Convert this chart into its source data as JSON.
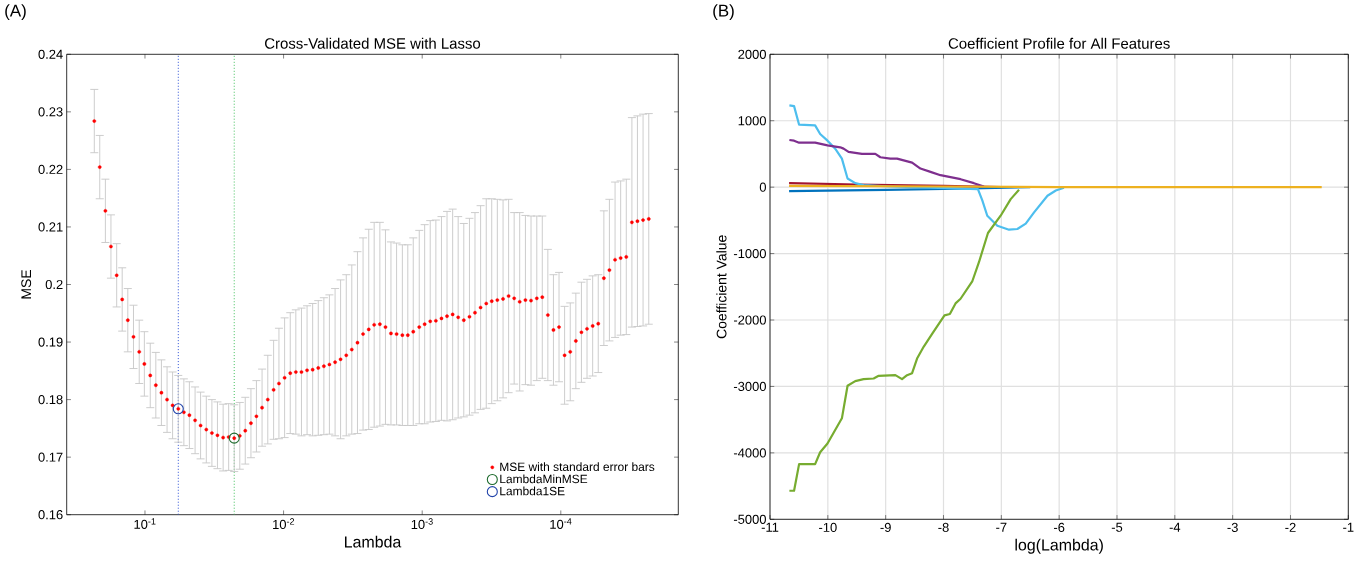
{
  "chart_data": [
    {
      "type": "scatter",
      "title": "Cross-Validated MSE with Lasso",
      "xlabel": "Lambda",
      "ylabel": "MSE",
      "annotations": [
        "(A)"
      ],
      "log": "x",
      "xlim": [
        0.367,
        1.42e-05
      ],
      "ylim": [
        0.16,
        0.24
      ],
      "xticks": [
        {
          "value": 0.1,
          "label": "10$^{-1}$"
        },
        {
          "value": 0.01,
          "label": "10$^{-2}$"
        },
        {
          "value": 0.001,
          "label": "10$^{-3}$"
        },
        {
          "value": 0.0001,
          "label": "10$^{-4}$"
        }
      ],
      "yticks": [
        0.16,
        0.17,
        0.18,
        0.19,
        0.2,
        0.21,
        0.22,
        0.23,
        0.24
      ],
      "legend": "bottom right",
      "marker": "circle",
      "ref_lines": [
        {
          "axis": "x",
          "value": 0.0575,
          "color": "#2b4fd6",
          "line_style": "dotted"
        },
        {
          "axis": "x",
          "value": 0.0227,
          "color": "#3fbf5a",
          "line_style": "dotted"
        }
      ],
      "series": [
        {
          "name": "MSE with standard error bars",
          "color": "#ff0000",
          "x": [
            0.232,
            0.212,
            0.193,
            0.176,
            0.16,
            0.146,
            0.133,
            0.121,
            0.11,
            0.101,
            0.0916,
            0.0835,
            0.0761,
            0.0693,
            0.0632,
            0.0575,
            0.0524,
            0.0478,
            0.0435,
            0.0397,
            0.0361,
            0.0329,
            0.03,
            0.0273,
            0.0249,
            0.0227,
            0.0207,
            0.0189,
            0.0172,
            0.0157,
            0.0143,
            0.013,
            0.0118,
            0.0108,
            0.00983,
            0.00895,
            0.00816,
            0.00743,
            0.00677,
            0.00617,
            0.00562,
            0.00512,
            0.00467,
            0.00425,
            0.00388,
            0.00353,
            0.00322,
            0.00293,
            0.00267,
            0.00243,
            0.00222,
            0.00202,
            0.00184,
            0.00168,
            0.00153,
            0.00139,
            0.00127,
            0.00116,
            0.00105,
            0.00096,
            0.000875,
            0.000797,
            0.000726,
            0.000662,
            0.000603,
            0.00055,
            0.000501,
            0.000456,
            0.000416,
            0.000379,
            0.000345,
            0.000315,
            0.000287,
            0.000261,
            0.000238,
            0.000217,
            0.000198,
            0.00018,
            0.000164,
            0.000149,
            0.000136,
            0.000124,
            0.000113,
            0.000103,
            9.39e-05,
            8.55e-05,
            7.79e-05,
            7.1e-05,
            6.47e-05,
            5.89e-05,
            5.37e-05,
            4.89e-05,
            4.46e-05,
            4.06e-05,
            3.7e-05,
            3.37e-05,
            3.07e-05,
            2.8e-05,
            2.55e-05,
            2.32e-05
          ],
          "values": [
            0.2284,
            0.2204,
            0.2128,
            0.2066,
            0.2016,
            0.1974,
            0.1938,
            0.1909,
            0.1883,
            0.1862,
            0.1842,
            0.1825,
            0.1812,
            0.18,
            0.179,
            0.1784,
            0.1778,
            0.1773,
            0.1764,
            0.1755,
            0.1748,
            0.1742,
            0.1738,
            0.1734,
            0.1735,
            0.1733,
            0.1737,
            0.1746,
            0.1759,
            0.1771,
            0.1786,
            0.18,
            0.1817,
            0.1828,
            0.1838,
            0.1846,
            0.1848,
            0.1848,
            0.1851,
            0.1852,
            0.1855,
            0.1858,
            0.1861,
            0.1865,
            0.187,
            0.1877,
            0.1887,
            0.1899,
            0.1914,
            0.1922,
            0.193,
            0.1931,
            0.1926,
            0.1915,
            0.1914,
            0.1912,
            0.1912,
            0.1918,
            0.1926,
            0.1931,
            0.1936,
            0.1937,
            0.1941,
            0.1945,
            0.1948,
            0.1943,
            0.1938,
            0.1944,
            0.1951,
            0.196,
            0.1967,
            0.1971,
            0.1973,
            0.1975,
            0.198,
            0.1976,
            0.197,
            0.1973,
            0.1972,
            0.1976,
            0.1978,
            0.1947,
            0.1921,
            0.1926,
            0.1877,
            0.1883,
            0.1902,
            0.1917,
            0.1923,
            0.1928,
            0.1932,
            0.2011,
            0.2025,
            0.2043,
            0.2046,
            0.2048,
            0.2108,
            0.211,
            0.2112,
            0.2114
          ],
          "errors": [
            0.0055,
            0.0055,
            0.0055,
            0.0055,
            0.0055,
            0.0055,
            0.0055,
            0.0055,
            0.0055,
            0.0056,
            0.0056,
            0.0057,
            0.0057,
            0.0057,
            0.0058,
            0.0058,
            0.0058,
            0.0058,
            0.0058,
            0.0058,
            0.0058,
            0.0058,
            0.0058,
            0.0058,
            0.0058,
            0.0058,
            0.0058,
            0.0058,
            0.006,
            0.0062,
            0.0067,
            0.0077,
            0.0086,
            0.0096,
            0.0104,
            0.0105,
            0.0108,
            0.0111,
            0.0112,
            0.0115,
            0.0117,
            0.0119,
            0.0121,
            0.0128,
            0.0138,
            0.014,
            0.0147,
            0.0158,
            0.0167,
            0.0174,
            0.0178,
            0.0177,
            0.0169,
            0.0159,
            0.0158,
            0.0157,
            0.0157,
            0.0163,
            0.0168,
            0.0173,
            0.0175,
            0.0175,
            0.0177,
            0.0182,
            0.0183,
            0.0175,
            0.0168,
            0.0171,
            0.0174,
            0.0177,
            0.0182,
            0.0178,
            0.0175,
            0.0172,
            0.0168,
            0.0149,
            0.0155,
            0.0147,
            0.0147,
            0.0143,
            0.0141,
            0.0114,
            0.0096,
            0.0095,
            0.0085,
            0.0085,
            0.0083,
            0.0087,
            0.0086,
            0.0087,
            0.0085,
            0.0117,
            0.0123,
            0.0135,
            0.0134,
            0.0135,
            0.0182,
            0.0183,
            0.0184,
            0.0183
          ]
        },
        {
          "name": "LambdaMinMSE",
          "color": "#1e6b2e",
          "x": [
            0.0227
          ],
          "values": [
            0.1733
          ]
        },
        {
          "name": "Lambda1SE",
          "color": "#2244aa",
          "x": [
            0.0575
          ],
          "values": [
            0.1784
          ]
        }
      ]
    },
    {
      "type": "line",
      "title": "Coefficient Profile for All Features",
      "xlabel": "log(Lambda)",
      "ylabel": "Coefficient Value",
      "annotations": [
        "(B)"
      ],
      "xlim": [
        -11,
        -1
      ],
      "ylim": [
        -5000,
        2000
      ],
      "xticks": [
        -11,
        -10,
        -9,
        -8,
        -7,
        -6,
        -5,
        -4,
        -3,
        -2,
        -1
      ],
      "yticks": [
        -5000,
        -4000,
        -3000,
        -2000,
        -1000,
        0,
        1000,
        2000
      ],
      "grid": true,
      "series": [
        {
          "color": "#a2142f",
          "x": [
            -10.67,
            -9.5,
            -8,
            -7
          ],
          "values": [
            60,
            40,
            20,
            0
          ]
        },
        {
          "color": "#0072bd",
          "x": [
            -10.67,
            -9,
            -7.5,
            -6.5
          ],
          "values": [
            -60,
            -40,
            -20,
            0
          ]
        },
        {
          "color": "#4dbeee",
          "x": [
            -10.665,
            -10.584,
            -10.497,
            -10.22,
            -10.133,
            -10.006,
            -9.873,
            -9.757,
            -9.659,
            -9.526,
            -9.382,
            -8.92,
            -7.405,
            -7.329,
            -7.243,
            -7.069,
            -6.867,
            -6.723,
            -6.578,
            -6.434,
            -6.202,
            -6.058,
            -5.917
          ],
          "values": [
            1230,
            1220,
            940,
            930,
            800,
            700,
            580,
            430,
            130,
            60,
            30,
            10,
            -30,
            -200,
            -430,
            -580,
            -640,
            -630,
            -550,
            -380,
            -130,
            -50,
            -10
          ]
        },
        {
          "color": "#7e2f8e",
          "x": [
            -10.665,
            -10.584,
            -10.497,
            -10.22,
            -10.006,
            -9.786,
            -9.728,
            -9.642,
            -9.41,
            -9.179,
            -9.092,
            -8.919,
            -8.803,
            -8.543,
            -8.399,
            -8.225,
            -8.052,
            -7.879,
            -7.705,
            -7.474,
            -7.301
          ],
          "values": [
            710,
            700,
            670,
            670,
            630,
            600,
            580,
            530,
            500,
            500,
            450,
            430,
            430,
            370,
            280,
            230,
            180,
            150,
            120,
            60,
            10
          ]
        },
        {
          "color": "#77ac30",
          "x": [
            -10.665,
            -10.584,
            -10.497,
            -10.22,
            -10.133,
            -10.006,
            -9.757,
            -9.659,
            -9.526,
            -9.382,
            -9.208,
            -9.121,
            -8.832,
            -8.717,
            -8.63,
            -8.543,
            -8.457,
            -8.341,
            -8.197,
            -7.983,
            -7.89,
            -7.792,
            -7.705,
            -7.503,
            -7.387,
            -7.231,
            -7.012,
            -6.838,
            -6.694
          ],
          "values": [
            -4570,
            -4570,
            -4170,
            -4170,
            -3990,
            -3860,
            -3480,
            -2990,
            -2920,
            -2890,
            -2880,
            -2840,
            -2830,
            -2890,
            -2830,
            -2800,
            -2580,
            -2400,
            -2210,
            -1930,
            -1910,
            -1750,
            -1680,
            -1420,
            -1130,
            -690,
            -430,
            -180,
            -40
          ]
        },
        {
          "color": "#edb120",
          "x": [
            -10.67,
            -8,
            -6,
            -1.46
          ],
          "values": [
            20,
            10,
            0,
            0
          ]
        }
      ]
    }
  ]
}
